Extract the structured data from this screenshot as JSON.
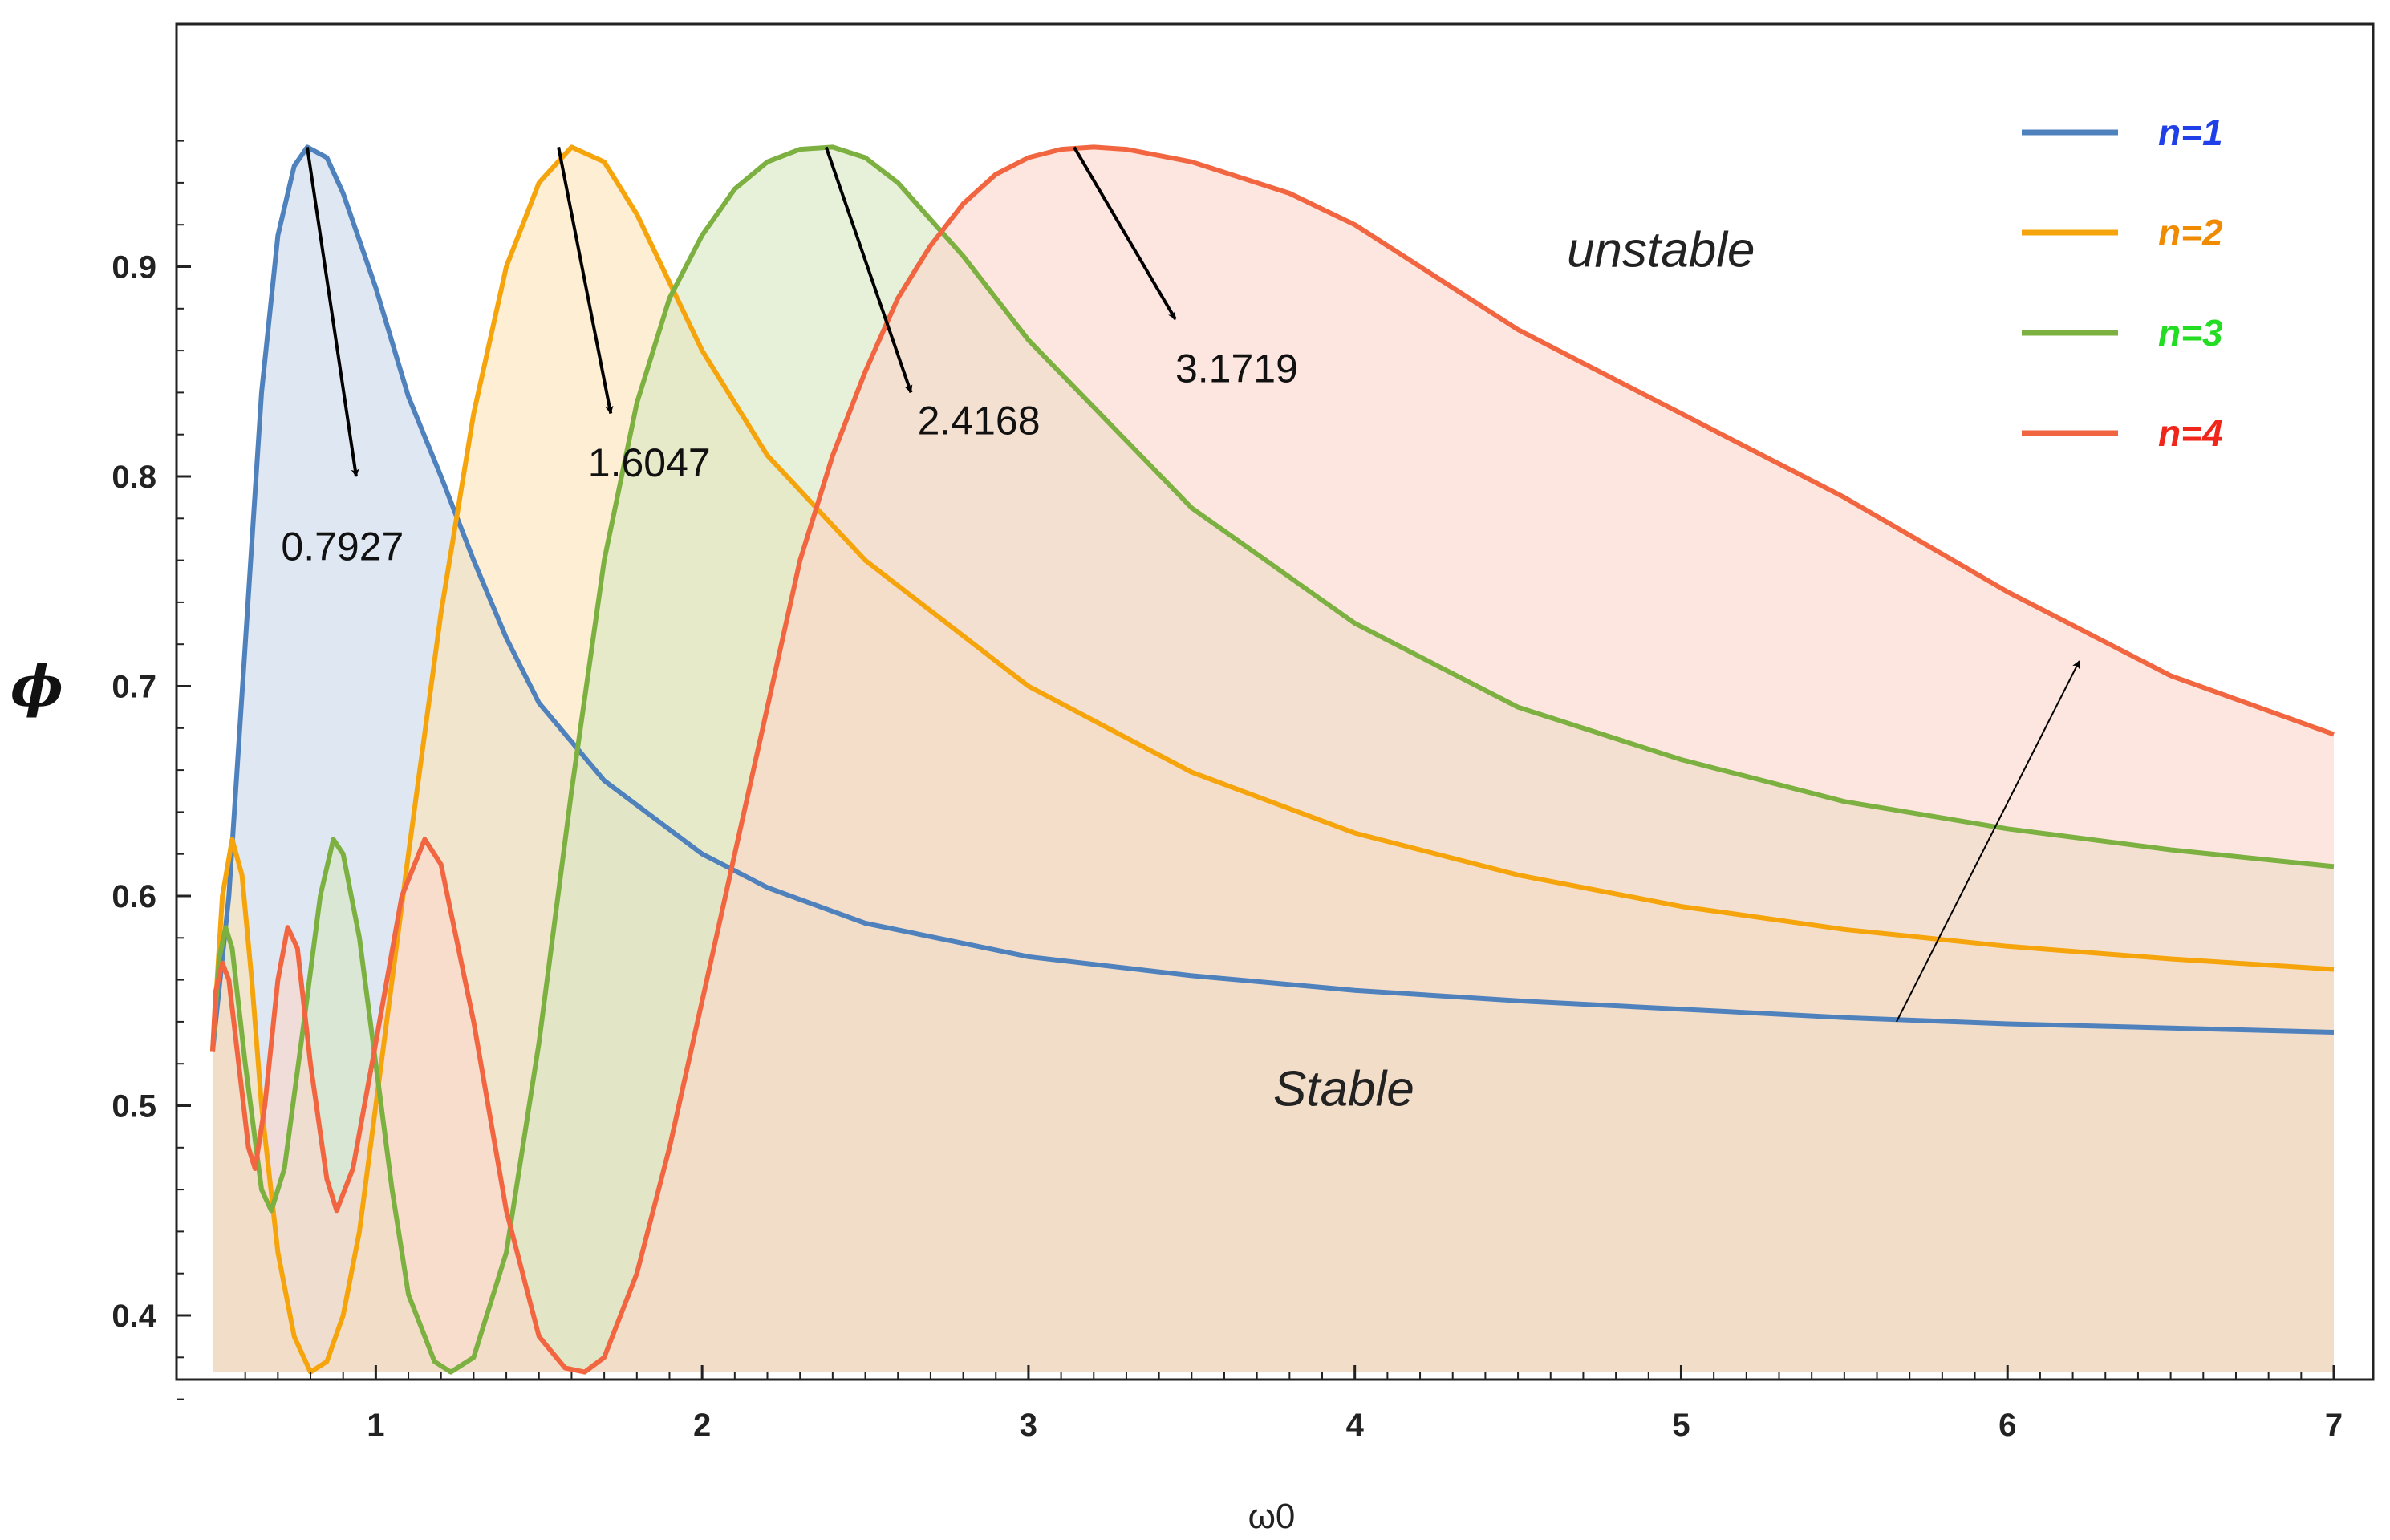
{
  "chart_data": {
    "type": "line",
    "xlabel": "ω0",
    "ylabel": "ϕ",
    "xlim": [
      0.5,
      7
    ],
    "ylim": [
      0.35,
      0.97
    ],
    "xticks": [
      1,
      2,
      3,
      4,
      5,
      6,
      7
    ],
    "yticks": [
      0.4,
      0.5,
      0.6,
      0.7,
      0.8,
      0.9
    ],
    "legend_position": "top-right",
    "grid": false,
    "fill_floor": 0.373,
    "series": [
      {
        "name": "n=1",
        "color": "#4f81bd",
        "fill": "#c9d9ea",
        "label_color": "#1f3fe8",
        "points": [
          [
            0.5,
            0.526
          ],
          [
            0.55,
            0.6
          ],
          [
            0.6,
            0.72
          ],
          [
            0.65,
            0.84
          ],
          [
            0.7,
            0.915
          ],
          [
            0.75,
            0.948
          ],
          [
            0.79,
            0.957
          ],
          [
            0.85,
            0.952
          ],
          [
            0.9,
            0.935
          ],
          [
            1.0,
            0.89
          ],
          [
            1.1,
            0.838
          ],
          [
            1.2,
            0.8
          ],
          [
            1.3,
            0.76
          ],
          [
            1.4,
            0.723
          ],
          [
            1.5,
            0.692
          ],
          [
            1.7,
            0.655
          ],
          [
            2.0,
            0.62
          ],
          [
            2.2,
            0.604
          ],
          [
            2.5,
            0.587
          ],
          [
            3.0,
            0.571
          ],
          [
            3.5,
            0.562
          ],
          [
            4.0,
            0.555
          ],
          [
            4.5,
            0.55
          ],
          [
            5.0,
            0.546
          ],
          [
            5.5,
            0.542
          ],
          [
            6.0,
            0.539
          ],
          [
            6.5,
            0.537
          ],
          [
            7.0,
            0.535
          ]
        ]
      },
      {
        "name": "n=2",
        "color": "#f5a40c",
        "fill": "#fde3b8",
        "label_color": "#f08a00",
        "points": [
          [
            0.5,
            0.526
          ],
          [
            0.53,
            0.6
          ],
          [
            0.56,
            0.627
          ],
          [
            0.59,
            0.61
          ],
          [
            0.62,
            0.56
          ],
          [
            0.65,
            0.5
          ],
          [
            0.7,
            0.43
          ],
          [
            0.75,
            0.39
          ],
          [
            0.8,
            0.373
          ],
          [
            0.85,
            0.378
          ],
          [
            0.9,
            0.4
          ],
          [
            0.95,
            0.44
          ],
          [
            1.0,
            0.5
          ],
          [
            1.1,
            0.62
          ],
          [
            1.2,
            0.735
          ],
          [
            1.3,
            0.83
          ],
          [
            1.4,
            0.9
          ],
          [
            1.5,
            0.94
          ],
          [
            1.6,
            0.957
          ],
          [
            1.7,
            0.95
          ],
          [
            1.8,
            0.925
          ],
          [
            2.0,
            0.86
          ],
          [
            2.2,
            0.81
          ],
          [
            2.5,
            0.76
          ],
          [
            3.0,
            0.7
          ],
          [
            3.5,
            0.659
          ],
          [
            4.0,
            0.63
          ],
          [
            4.5,
            0.61
          ],
          [
            5.0,
            0.595
          ],
          [
            5.5,
            0.584
          ],
          [
            6.0,
            0.576
          ],
          [
            6.5,
            0.57
          ],
          [
            7.0,
            0.565
          ]
        ]
      },
      {
        "name": "n=3",
        "color": "#7cb041",
        "fill": "#d9e6c2",
        "label_color": "#22dd22",
        "points": [
          [
            0.5,
            0.526
          ],
          [
            0.52,
            0.57
          ],
          [
            0.54,
            0.585
          ],
          [
            0.56,
            0.575
          ],
          [
            0.6,
            0.52
          ],
          [
            0.65,
            0.46
          ],
          [
            0.68,
            0.45
          ],
          [
            0.72,
            0.47
          ],
          [
            0.78,
            0.54
          ],
          [
            0.83,
            0.6
          ],
          [
            0.87,
            0.627
          ],
          [
            0.9,
            0.62
          ],
          [
            0.95,
            0.58
          ],
          [
            1.0,
            0.52
          ],
          [
            1.05,
            0.46
          ],
          [
            1.1,
            0.41
          ],
          [
            1.18,
            0.378
          ],
          [
            1.23,
            0.373
          ],
          [
            1.3,
            0.38
          ],
          [
            1.4,
            0.43
          ],
          [
            1.5,
            0.53
          ],
          [
            1.6,
            0.65
          ],
          [
            1.7,
            0.76
          ],
          [
            1.8,
            0.835
          ],
          [
            1.9,
            0.885
          ],
          [
            2.0,
            0.915
          ],
          [
            2.1,
            0.937
          ],
          [
            2.2,
            0.95
          ],
          [
            2.3,
            0.956
          ],
          [
            2.4,
            0.957
          ],
          [
            2.5,
            0.952
          ],
          [
            2.6,
            0.94
          ],
          [
            2.8,
            0.905
          ],
          [
            3.0,
            0.865
          ],
          [
            3.5,
            0.785
          ],
          [
            4.0,
            0.73
          ],
          [
            4.5,
            0.69
          ],
          [
            5.0,
            0.665
          ],
          [
            5.5,
            0.645
          ],
          [
            6.0,
            0.632
          ],
          [
            6.5,
            0.622
          ],
          [
            7.0,
            0.614
          ]
        ]
      },
      {
        "name": "n=4",
        "color": "#f16640",
        "fill": "#fcd6cb",
        "label_color": "#f0261a",
        "points": [
          [
            0.5,
            0.526
          ],
          [
            0.51,
            0.555
          ],
          [
            0.53,
            0.568
          ],
          [
            0.55,
            0.56
          ],
          [
            0.58,
            0.52
          ],
          [
            0.61,
            0.48
          ],
          [
            0.63,
            0.47
          ],
          [
            0.66,
            0.5
          ],
          [
            0.7,
            0.56
          ],
          [
            0.73,
            0.585
          ],
          [
            0.76,
            0.575
          ],
          [
            0.8,
            0.52
          ],
          [
            0.85,
            0.465
          ],
          [
            0.88,
            0.45
          ],
          [
            0.93,
            0.47
          ],
          [
            1.0,
            0.53
          ],
          [
            1.08,
            0.6
          ],
          [
            1.15,
            0.627
          ],
          [
            1.2,
            0.615
          ],
          [
            1.3,
            0.54
          ],
          [
            1.4,
            0.45
          ],
          [
            1.5,
            0.39
          ],
          [
            1.58,
            0.375
          ],
          [
            1.64,
            0.373
          ],
          [
            1.7,
            0.38
          ],
          [
            1.8,
            0.42
          ],
          [
            1.9,
            0.48
          ],
          [
            2.0,
            0.55
          ],
          [
            2.1,
            0.62
          ],
          [
            2.2,
            0.69
          ],
          [
            2.3,
            0.76
          ],
          [
            2.4,
            0.81
          ],
          [
            2.5,
            0.85
          ],
          [
            2.6,
            0.885
          ],
          [
            2.7,
            0.91
          ],
          [
            2.8,
            0.93
          ],
          [
            2.9,
            0.944
          ],
          [
            3.0,
            0.952
          ],
          [
            3.1,
            0.956
          ],
          [
            3.2,
            0.957
          ],
          [
            3.3,
            0.956
          ],
          [
            3.5,
            0.95
          ],
          [
            3.8,
            0.935
          ],
          [
            4.0,
            0.92
          ],
          [
            4.5,
            0.87
          ],
          [
            5.0,
            0.83
          ],
          [
            5.5,
            0.79
          ],
          [
            6.0,
            0.745
          ],
          [
            6.5,
            0.705
          ],
          [
            7.0,
            0.677
          ]
        ]
      }
    ],
    "annotations": [
      {
        "text": "0.7927",
        "arrow_from": [
          0.79,
          0.957
        ],
        "arrow_to": [
          0.94,
          0.8
        ],
        "label_at": [
          0.71,
          0.76
        ]
      },
      {
        "text": "1.6047",
        "arrow_from": [
          1.56,
          0.957
        ],
        "arrow_to": [
          1.72,
          0.83
        ],
        "label_at": [
          1.65,
          0.8
        ]
      },
      {
        "text": "2.4168",
        "arrow_from": [
          2.38,
          0.957
        ],
        "arrow_to": [
          2.64,
          0.84
        ],
        "label_at": [
          2.66,
          0.82
        ]
      },
      {
        "text": "3.1719",
        "arrow_from": [
          3.14,
          0.957
        ],
        "arrow_to": [
          3.45,
          0.875
        ],
        "label_at": [
          3.45,
          0.845
        ]
      }
    ],
    "trend_arrow": {
      "from": [
        5.66,
        0.54
      ],
      "to": [
        6.22,
        0.712
      ]
    },
    "region_labels": [
      {
        "text": "unstable",
        "at": [
          4.65,
          0.9
        ]
      },
      {
        "text": "Stable",
        "at": [
          3.75,
          0.5
        ]
      }
    ]
  }
}
